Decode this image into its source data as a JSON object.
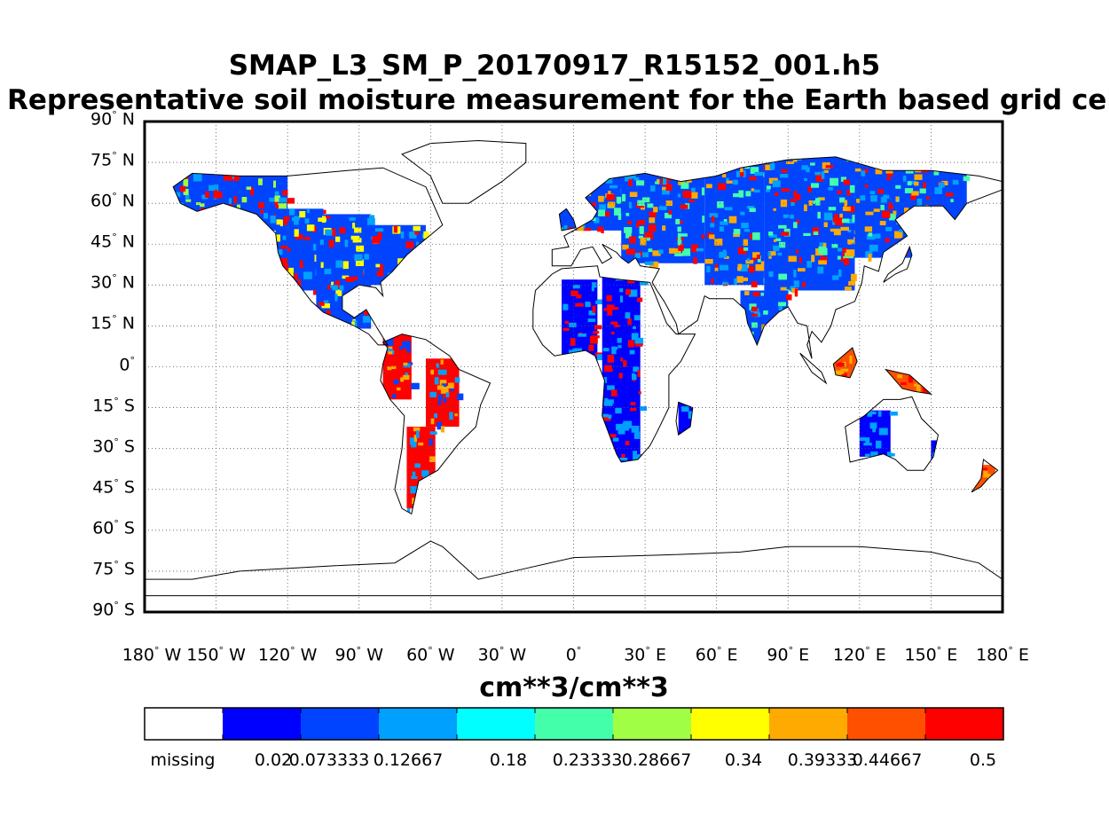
{
  "title_line1": "SMAP_L3_SM_P_20170917_R15152_001.h5",
  "title_line2": "Representative soil moisture measurement for the Earth based grid cell",
  "y_ticks": [
    {
      "deg": "90",
      "hemi": "N"
    },
    {
      "deg": "75",
      "hemi": "N"
    },
    {
      "deg": "60",
      "hemi": "N"
    },
    {
      "deg": "45",
      "hemi": "N"
    },
    {
      "deg": "30",
      "hemi": "N"
    },
    {
      "deg": "15",
      "hemi": "N"
    },
    {
      "deg": "0",
      "hemi": ""
    },
    {
      "deg": "15",
      "hemi": "S"
    },
    {
      "deg": "30",
      "hemi": "S"
    },
    {
      "deg": "45",
      "hemi": "S"
    },
    {
      "deg": "60",
      "hemi": "S"
    },
    {
      "deg": "75",
      "hemi": "S"
    },
    {
      "deg": "90",
      "hemi": "S"
    }
  ],
  "x_ticks": [
    {
      "deg": "180",
      "hemi": "W"
    },
    {
      "deg": "150",
      "hemi": "W"
    },
    {
      "deg": "120",
      "hemi": "W"
    },
    {
      "deg": "90",
      "hemi": "W"
    },
    {
      "deg": "60",
      "hemi": "W"
    },
    {
      "deg": "30",
      "hemi": "W"
    },
    {
      "deg": "0",
      "hemi": ""
    },
    {
      "deg": "30",
      "hemi": "E"
    },
    {
      "deg": "60",
      "hemi": "E"
    },
    {
      "deg": "90",
      "hemi": "E"
    },
    {
      "deg": "120",
      "hemi": "E"
    },
    {
      "deg": "150",
      "hemi": "E"
    },
    {
      "deg": "180",
      "hemi": "E"
    }
  ],
  "colorbar": {
    "unit": "cm**3/cm**3",
    "colors": [
      "#ffffff",
      "#0000ff",
      "#0044ff",
      "#00a0ff",
      "#00ffff",
      "#44ffaa",
      "#a0ff44",
      "#ffff00",
      "#ffaa00",
      "#ff5000",
      "#ff0000"
    ],
    "labels": [
      "missing",
      "0.02",
      "0.073333",
      "0.12667",
      "0.18",
      "0.23333",
      "0.28667",
      "0.34",
      "0.39333",
      "0.44667",
      "0.5"
    ]
  },
  "map": {
    "grid": "on",
    "projection": "equirectangular",
    "lon_range": [
      -180,
      180
    ],
    "lat_range": [
      -90,
      90
    ],
    "swaths": [
      {
        "region": "Alaska / Canada",
        "colors": [
          "#0044ff",
          "#00a0ff",
          "#ff0000",
          "#a0ff44"
        ]
      },
      {
        "region": "North America",
        "colors": [
          "#0044ff",
          "#00a0ff",
          "#ff0000",
          "#ffff00"
        ]
      },
      {
        "region": "South America",
        "colors": [
          "#ff0000",
          "#0044ff",
          "#00a0ff",
          "#ffaa00"
        ]
      },
      {
        "region": "Africa",
        "colors": [
          "#0000ff",
          "#ff0000",
          "#00a0ff"
        ]
      },
      {
        "region": "Europe / Asia",
        "colors": [
          "#0044ff",
          "#00a0ff",
          "#44ffaa",
          "#ff0000",
          "#ffaa00"
        ]
      },
      {
        "region": "Southeast Asia",
        "colors": [
          "#ff5000",
          "#ff0000",
          "#ffaa00"
        ]
      },
      {
        "region": "Australia",
        "colors": [
          "#0000ff",
          "#00a0ff"
        ]
      }
    ]
  }
}
